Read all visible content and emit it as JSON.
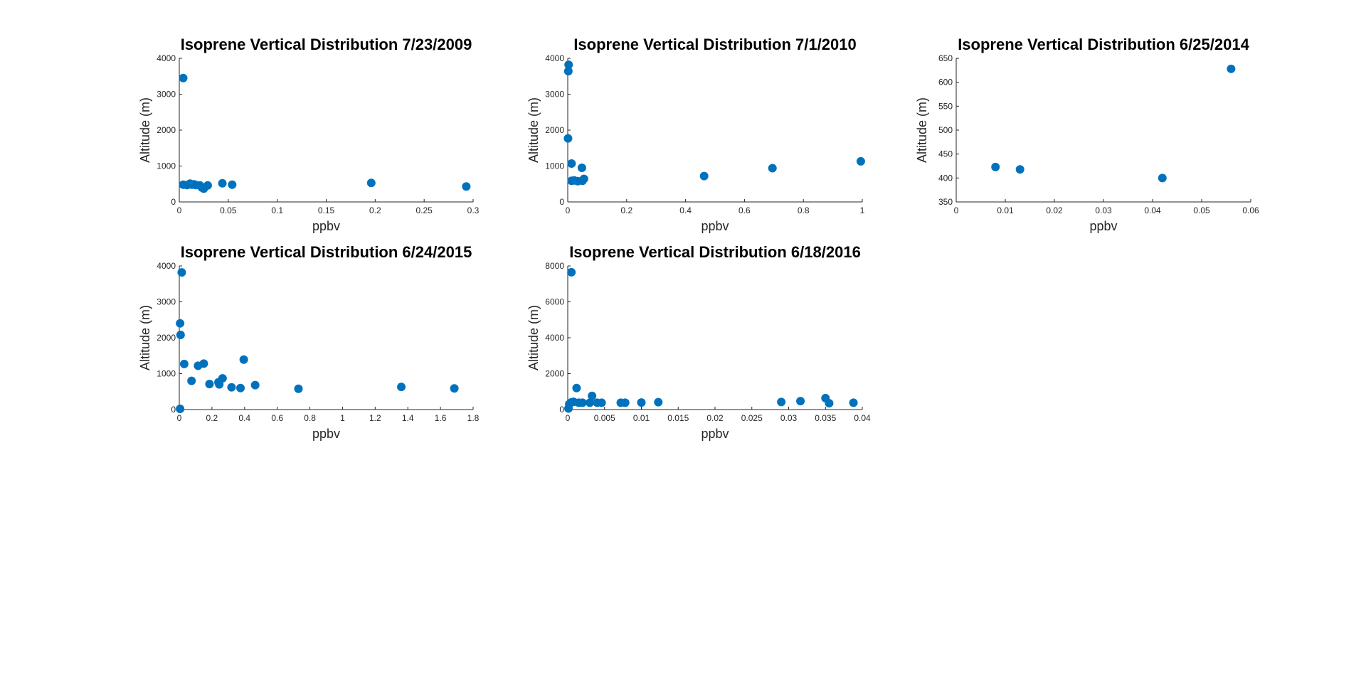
{
  "chart_data": [
    {
      "type": "scatter",
      "title": "Isoprene Vertical Distribution 7/23/2009",
      "xlabel": "ppbv",
      "ylabel": "Altitude (m)",
      "xlim": [
        0,
        0.3
      ],
      "ylim": [
        0,
        4000
      ],
      "xticks": [
        "0",
        "0.05",
        "0.1",
        "0.15",
        "0.2",
        "0.25",
        "0.3"
      ],
      "yticks": [
        "0",
        "1000",
        "2000",
        "3000",
        "4000"
      ],
      "points": [
        [
          0.004,
          3450
        ],
        [
          0.004,
          480
        ],
        [
          0.008,
          470
        ],
        [
          0.011,
          510
        ],
        [
          0.013,
          480
        ],
        [
          0.015,
          490
        ],
        [
          0.017,
          470
        ],
        [
          0.021,
          460
        ],
        [
          0.023,
          400
        ],
        [
          0.025,
          370
        ],
        [
          0.029,
          460
        ],
        [
          0.044,
          520
        ],
        [
          0.054,
          480
        ],
        [
          0.196,
          530
        ],
        [
          0.293,
          430
        ]
      ]
    },
    {
      "type": "scatter",
      "title": "Isoprene Vertical Distribution 7/1/2010",
      "xlabel": "ppbv",
      "ylabel": "Altitude (m)",
      "xlim": [
        0,
        1
      ],
      "ylim": [
        0,
        4000
      ],
      "xticks": [
        "0",
        "0.2",
        "0.4",
        "0.6",
        "0.8",
        "1"
      ],
      "yticks": [
        "0",
        "1000",
        "2000",
        "3000",
        "4000"
      ],
      "points": [
        [
          0.003,
          3820
        ],
        [
          0.002,
          3640
        ],
        [
          0.001,
          1770
        ],
        [
          0.013,
          1070
        ],
        [
          0.013,
          590
        ],
        [
          0.022,
          600
        ],
        [
          0.034,
          580
        ],
        [
          0.048,
          950
        ],
        [
          0.05,
          590
        ],
        [
          0.055,
          640
        ],
        [
          0.463,
          720
        ],
        [
          0.695,
          940
        ],
        [
          0.995,
          1130
        ]
      ]
    },
    {
      "type": "scatter",
      "title": "Isoprene Vertical Distribution 6/25/2014",
      "xlabel": "ppbv",
      "ylabel": "Altitude (m)",
      "xlim": [
        0,
        0.06
      ],
      "ylim": [
        350,
        650
      ],
      "xticks": [
        "0",
        "0.01",
        "0.02",
        "0.03",
        "0.04",
        "0.05",
        "0.06"
      ],
      "yticks": [
        "350",
        "400",
        "450",
        "500",
        "550",
        "600",
        "650"
      ],
      "points": [
        [
          0.008,
          423
        ],
        [
          0.013,
          418
        ],
        [
          0.042,
          400
        ],
        [
          0.056,
          628
        ]
      ]
    },
    {
      "type": "scatter",
      "title": "Isoprene Vertical Distribution 6/24/2015",
      "xlabel": "ppbv",
      "ylabel": "Altitude (m)",
      "xlim": [
        0,
        1.8
      ],
      "ylim": [
        0,
        4000
      ],
      "xticks": [
        "0",
        "0.2",
        "0.4",
        "0.6",
        "0.8",
        "1",
        "1.2",
        "1.4",
        "1.6",
        "1.8"
      ],
      "yticks": [
        "0",
        "1000",
        "2000",
        "3000",
        "4000"
      ],
      "points": [
        [
          0.015,
          3820
        ],
        [
          0.005,
          2400
        ],
        [
          0.008,
          2080
        ],
        [
          0.03,
          1270
        ],
        [
          0.005,
          20
        ],
        [
          0.075,
          800
        ],
        [
          0.115,
          1220
        ],
        [
          0.15,
          1280
        ],
        [
          0.185,
          710
        ],
        [
          0.24,
          760
        ],
        [
          0.245,
          700
        ],
        [
          0.265,
          870
        ],
        [
          0.32,
          620
        ],
        [
          0.375,
          600
        ],
        [
          0.395,
          1390
        ],
        [
          0.465,
          680
        ],
        [
          0.73,
          580
        ],
        [
          1.36,
          630
        ],
        [
          1.685,
          590
        ]
      ]
    },
    {
      "type": "scatter",
      "title": "Isoprene Vertical Distribution 6/18/2016",
      "xlabel": "ppbv",
      "ylabel": "Altitude (m)",
      "xlim": [
        0,
        0.04
      ],
      "ylim": [
        0,
        8000
      ],
      "xticks": [
        "0",
        "0.005",
        "0.01",
        "0.015",
        "0.02",
        "0.025",
        "0.03",
        "0.035",
        "0.04"
      ],
      "yticks": [
        "0",
        "2000",
        "4000",
        "6000",
        "8000"
      ],
      "points": [
        [
          0.0005,
          7650
        ],
        [
          0.0001,
          60
        ],
        [
          0.0002,
          300
        ],
        [
          0.0005,
          400
        ],
        [
          0.0008,
          430
        ],
        [
          0.0012,
          1200
        ],
        [
          0.0015,
          380
        ],
        [
          0.002,
          380
        ],
        [
          0.003,
          380
        ],
        [
          0.0033,
          760
        ],
        [
          0.004,
          380
        ],
        [
          0.0046,
          380
        ],
        [
          0.0072,
          380
        ],
        [
          0.0078,
          380
        ],
        [
          0.01,
          390
        ],
        [
          0.0123,
          410
        ],
        [
          0.029,
          420
        ],
        [
          0.0316,
          470
        ],
        [
          0.035,
          640
        ],
        [
          0.0355,
          350
        ],
        [
          0.0388,
          380
        ]
      ]
    }
  ],
  "colors": {
    "marker": "#0072BD",
    "axis": "#262626",
    "background": "#ffffff"
  }
}
